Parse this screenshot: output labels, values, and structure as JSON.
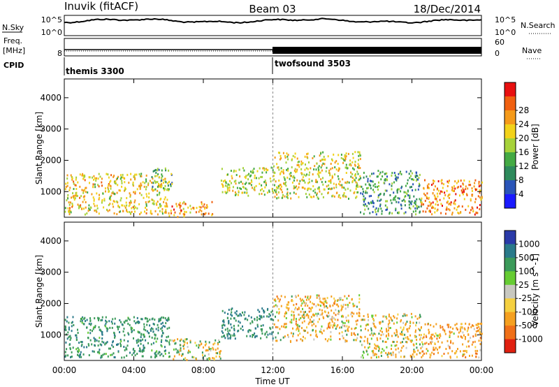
{
  "header": {
    "station": "Inuvik (fitACF)",
    "beam": "Beam 03",
    "date": "18/Dec/2014"
  },
  "strip_labels": {
    "nsky": "N.Sky",
    "nsky_ticks": [
      "10^5",
      "10^0"
    ],
    "nsearch": "N.Search",
    "nsearch_ticks": [
      "10^5",
      "10^0"
    ],
    "freq_line1": "Freq.",
    "freq_line2": "[MHz]",
    "freq_ticks": [
      "8"
    ],
    "nave": "Nave",
    "nave_ticks": [
      "60",
      "0"
    ],
    "cpid": "CPID"
  },
  "cpid_segments": [
    {
      "label": "themis 3300",
      "start_hour": 0
    },
    {
      "label": "twofsound 3503",
      "start_hour": 12
    }
  ],
  "colors": {
    "power": [
      "#1a1aff",
      "#2a55b8",
      "#2e8a5c",
      "#44aa44",
      "#a6d23a",
      "#f2d21a",
      "#f59a1a",
      "#f06010",
      "#e81010"
    ],
    "velocity": [
      "#2a3aa8",
      "#2a7a8a",
      "#3b9a5a",
      "#66cc33",
      "#c8c8c0",
      "#f5d040",
      "#f5a020",
      "#f07018",
      "#e02010"
    ]
  },
  "chart_data": [
    {
      "type": "heatmap",
      "name": "power",
      "ylabel": "Slant Range [km]",
      "xlabel": "",
      "xlim": [
        0,
        24
      ],
      "ylim": [
        180,
        4600
      ],
      "yticks": [
        "1000",
        "2000",
        "3000",
        "4000"
      ],
      "xticks": [],
      "colorbar_label": "Power [dB]",
      "colorbar_ticks": [
        "4",
        "8",
        "12",
        "16",
        "20",
        "24",
        "28"
      ],
      "scatter_regions": [
        {
          "t0": 0.0,
          "t1": 6.0,
          "r0": 300,
          "r1": 1600,
          "value": 22
        },
        {
          "t0": 6.0,
          "t1": 8.5,
          "r0": 220,
          "r1": 700,
          "value": 26
        },
        {
          "t0": 5.0,
          "t1": 6.2,
          "r0": 1100,
          "r1": 1800,
          "value": 14
        },
        {
          "t0": 9.0,
          "t1": 12.0,
          "r0": 900,
          "r1": 1800,
          "value": 19
        },
        {
          "t0": 12.0,
          "t1": 17.0,
          "r0": 800,
          "r1": 2300,
          "value": 20
        },
        {
          "t0": 17.0,
          "t1": 20.5,
          "r0": 300,
          "r1": 1700,
          "value": 12
        },
        {
          "t0": 20.5,
          "t1": 24.0,
          "r0": 300,
          "r1": 1400,
          "value": 27
        }
      ]
    },
    {
      "type": "heatmap",
      "name": "velocity",
      "ylabel": "Slant Range [km]",
      "xlabel": "Time UT",
      "xlim": [
        0,
        24
      ],
      "ylim": [
        180,
        4600
      ],
      "yticks": [
        "1000",
        "2000",
        "3000",
        "4000"
      ],
      "xticks": [
        "00:00",
        "04:00",
        "08:00",
        "12:00",
        "16:00",
        "20:00",
        "00:00"
      ],
      "colorbar_label": "Velocity [m s^-1]",
      "colorbar_ticks": [
        "1000",
        "500",
        "100",
        "25",
        "-25",
        "-100",
        "-500",
        "-1000"
      ],
      "scatter_regions": [
        {
          "t0": 0.0,
          "t1": 6.0,
          "r0": 300,
          "r1": 1600,
          "value": 400
        },
        {
          "t0": 6.0,
          "t1": 9.0,
          "r0": 220,
          "r1": 900,
          "value": 0
        },
        {
          "t0": 9.0,
          "t1": 12.0,
          "r0": 900,
          "r1": 1900,
          "value": 500
        },
        {
          "t0": 12.0,
          "t1": 17.0,
          "r0": 800,
          "r1": 2300,
          "value": -200
        },
        {
          "t0": 17.0,
          "t1": 20.5,
          "r0": 300,
          "r1": 1700,
          "value": -150
        },
        {
          "t0": 20.5,
          "t1": 24.0,
          "r0": 300,
          "r1": 1400,
          "value": -300
        }
      ]
    }
  ]
}
